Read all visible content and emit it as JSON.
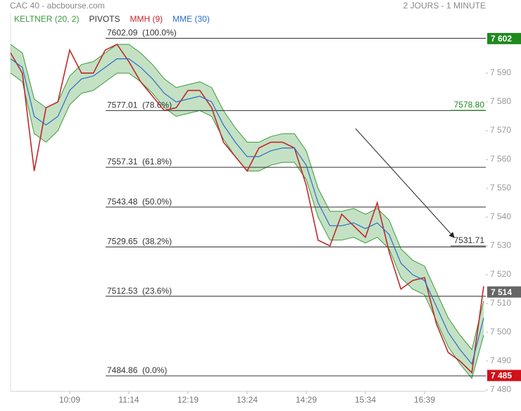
{
  "chart_data": {
    "type": "line",
    "title": "CAC 40 - abcbourse.com",
    "subtitle": "2 JOURS - 1 MINUTE",
    "categories": [
      null,
      null,
      null,
      null,
      null,
      "10:09",
      null,
      null,
      null,
      null,
      "11:14",
      null,
      null,
      null,
      null,
      "12:19",
      null,
      null,
      null,
      null,
      "13:24",
      null,
      null,
      null,
      null,
      "14:29",
      null,
      null,
      null,
      null,
      "15:34",
      null,
      null,
      null,
      null,
      "16:39",
      null,
      null,
      null,
      null,
      null
    ],
    "series": [
      {
        "name": "KELTNER (20, 2)",
        "color": "#3a9a3a",
        "upper": [
          7600,
          7597,
          7581,
          7578,
          7580,
          7589,
          7593,
          7594,
          7597,
          7600,
          7600,
          7597,
          7593,
          7588,
          7585,
          7586,
          7587,
          7585,
          7577,
          7571,
          7566,
          7566,
          7568,
          7569,
          7569,
          7563,
          7550,
          7542,
          7542,
          7543,
          7541,
          7543,
          7539,
          7529,
          7525,
          7523,
          7514,
          7505,
          7499,
          7494,
          7511
        ],
        "lower": [
          7590,
          7587,
          7569,
          7566,
          7570,
          7579,
          7583,
          7584,
          7587,
          7590,
          7590,
          7587,
          7583,
          7578,
          7575,
          7576,
          7577,
          7575,
          7567,
          7561,
          7556,
          7556,
          7558,
          7559,
          7559,
          7553,
          7540,
          7532,
          7532,
          7533,
          7531,
          7533,
          7529,
          7519,
          7515,
          7513,
          7504,
          7495,
          7489,
          7484,
          7499
        ]
      },
      {
        "name": "PIVOTS",
        "color": "#333333",
        "levels": [
          {
            "value": 7602.09,
            "label": "7602.09  (100.0%)"
          },
          {
            "value": 7577.01,
            "label": "7577.01  (78.6%)"
          },
          {
            "value": 7557.31,
            "label": "7557.31  (61.8%)"
          },
          {
            "value": 7543.48,
            "label": "7543.48  (50.0%)"
          },
          {
            "value": 7529.65,
            "label": "7529.65  (38.2%)"
          },
          {
            "value": 7512.53,
            "label": "7512.53  (23.6%)"
          },
          {
            "value": 7484.86,
            "label": "7484.86  (0.0%)"
          }
        ]
      },
      {
        "name": "MMH (9)",
        "color": "#c0282a",
        "values": [
          7597,
          7590,
          7556,
          7578,
          7580,
          7598,
          7590,
          7590,
          7598,
          7600,
          7594,
          7587,
          7582,
          7577,
          7578,
          7584,
          7584,
          7578,
          7566,
          7561,
          7556,
          7564,
          7566,
          7566,
          7564,
          7551,
          7532,
          7530,
          7541,
          7537,
          7533,
          7545,
          7528,
          7515,
          7518,
          7519,
          7503,
          7493,
          7490,
          7486,
          7516
        ]
      },
      {
        "name": "MME (30)",
        "color": "#2a6fc9",
        "values": [
          7595,
          7592,
          7575,
          7572,
          7575,
          7584,
          7588,
          7589,
          7592,
          7595,
          7595,
          7592,
          7588,
          7583,
          7580,
          7581,
          7582,
          7580,
          7572,
          7566,
          7561,
          7561,
          7563,
          7564,
          7564,
          7558,
          7545,
          7537,
          7537,
          7538,
          7536,
          7538,
          7534,
          7524,
          7520,
          7518,
          7509,
          7500,
          7494,
          7489,
          7505
        ]
      }
    ],
    "ylim": [
      7479.5,
      7611
    ],
    "yticks": [
      {
        "value": 7480,
        "label": "7 480"
      },
      {
        "value": 7490,
        "label": "7 490"
      },
      {
        "value": 7500,
        "label": "7 500"
      },
      {
        "value": 7510,
        "label": "7 510"
      },
      {
        "value": 7520,
        "label": "7 520"
      },
      {
        "value": 7530,
        "label": "7 530"
      },
      {
        "value": 7540,
        "label": "7 540"
      },
      {
        "value": 7550,
        "label": "7 550"
      },
      {
        "value": 7560,
        "label": "7 560"
      },
      {
        "value": 7570,
        "label": "7 570"
      },
      {
        "value": 7580,
        "label": "7 580"
      },
      {
        "value": 7590,
        "label": "7 590"
      }
    ],
    "price_tags": [
      {
        "value": 7602,
        "label": "7 602",
        "color": "#1e8a1e"
      },
      {
        "value": 7514,
        "label": "7 514",
        "color": "#666666"
      },
      {
        "value": 7485,
        "label": "7 485",
        "color": "#d0101a"
      }
    ],
    "annotations": [
      {
        "value": 7578.8,
        "label": "7578.80",
        "color": "#1e8a1e"
      },
      {
        "value": 7531.71,
        "label": "7531.71",
        "color": "#333333"
      }
    ]
  }
}
